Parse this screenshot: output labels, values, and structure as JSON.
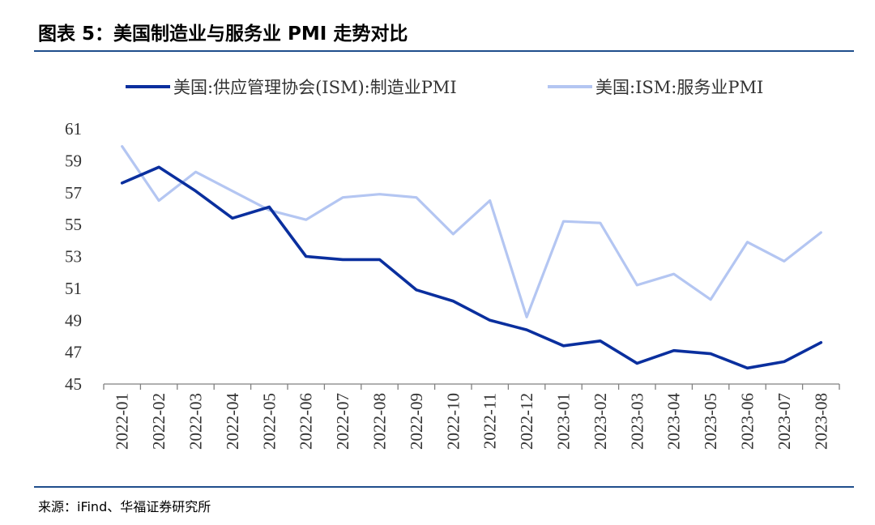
{
  "header": {
    "title": "图表 5：美国制造业与服务业 PMI 走势对比"
  },
  "footer": {
    "source": "来源：iFind、华福证券研究所"
  },
  "colors": {
    "rule": "#1f4e8c",
    "series_1": "#0a2f9e",
    "series_2": "#b4c6f2"
  },
  "chart_data": {
    "type": "line",
    "title": "",
    "xlabel": "",
    "ylabel": "",
    "ylim": [
      45,
      61
    ],
    "yticks": [
      45,
      47,
      49,
      51,
      53,
      55,
      57,
      59,
      61
    ],
    "grid": false,
    "legend_position": "top",
    "x": [
      "2022-01",
      "2022-02",
      "2022-03",
      "2022-04",
      "2022-05",
      "2022-06",
      "2022-07",
      "2022-08",
      "2022-09",
      "2022-10",
      "2022-11",
      "2022-12",
      "2023-01",
      "2023-02",
      "2023-03",
      "2023-04",
      "2023-05",
      "2023-06",
      "2023-07",
      "2023-08"
    ],
    "series": [
      {
        "name": "美国:供应管理协会(ISM):制造业PMI",
        "values": [
          57.6,
          58.6,
          57.1,
          55.4,
          56.1,
          53.0,
          52.8,
          52.8,
          50.9,
          50.2,
          49.0,
          48.4,
          47.4,
          47.7,
          46.3,
          47.1,
          46.9,
          46.0,
          46.4,
          47.6
        ]
      },
      {
        "name": "美国:ISM:服务业PMI",
        "values": [
          59.9,
          56.5,
          58.3,
          57.1,
          55.9,
          55.3,
          56.7,
          56.9,
          56.7,
          54.4,
          56.5,
          49.2,
          55.2,
          55.1,
          51.2,
          51.9,
          50.3,
          53.9,
          52.7,
          54.5
        ]
      }
    ]
  }
}
